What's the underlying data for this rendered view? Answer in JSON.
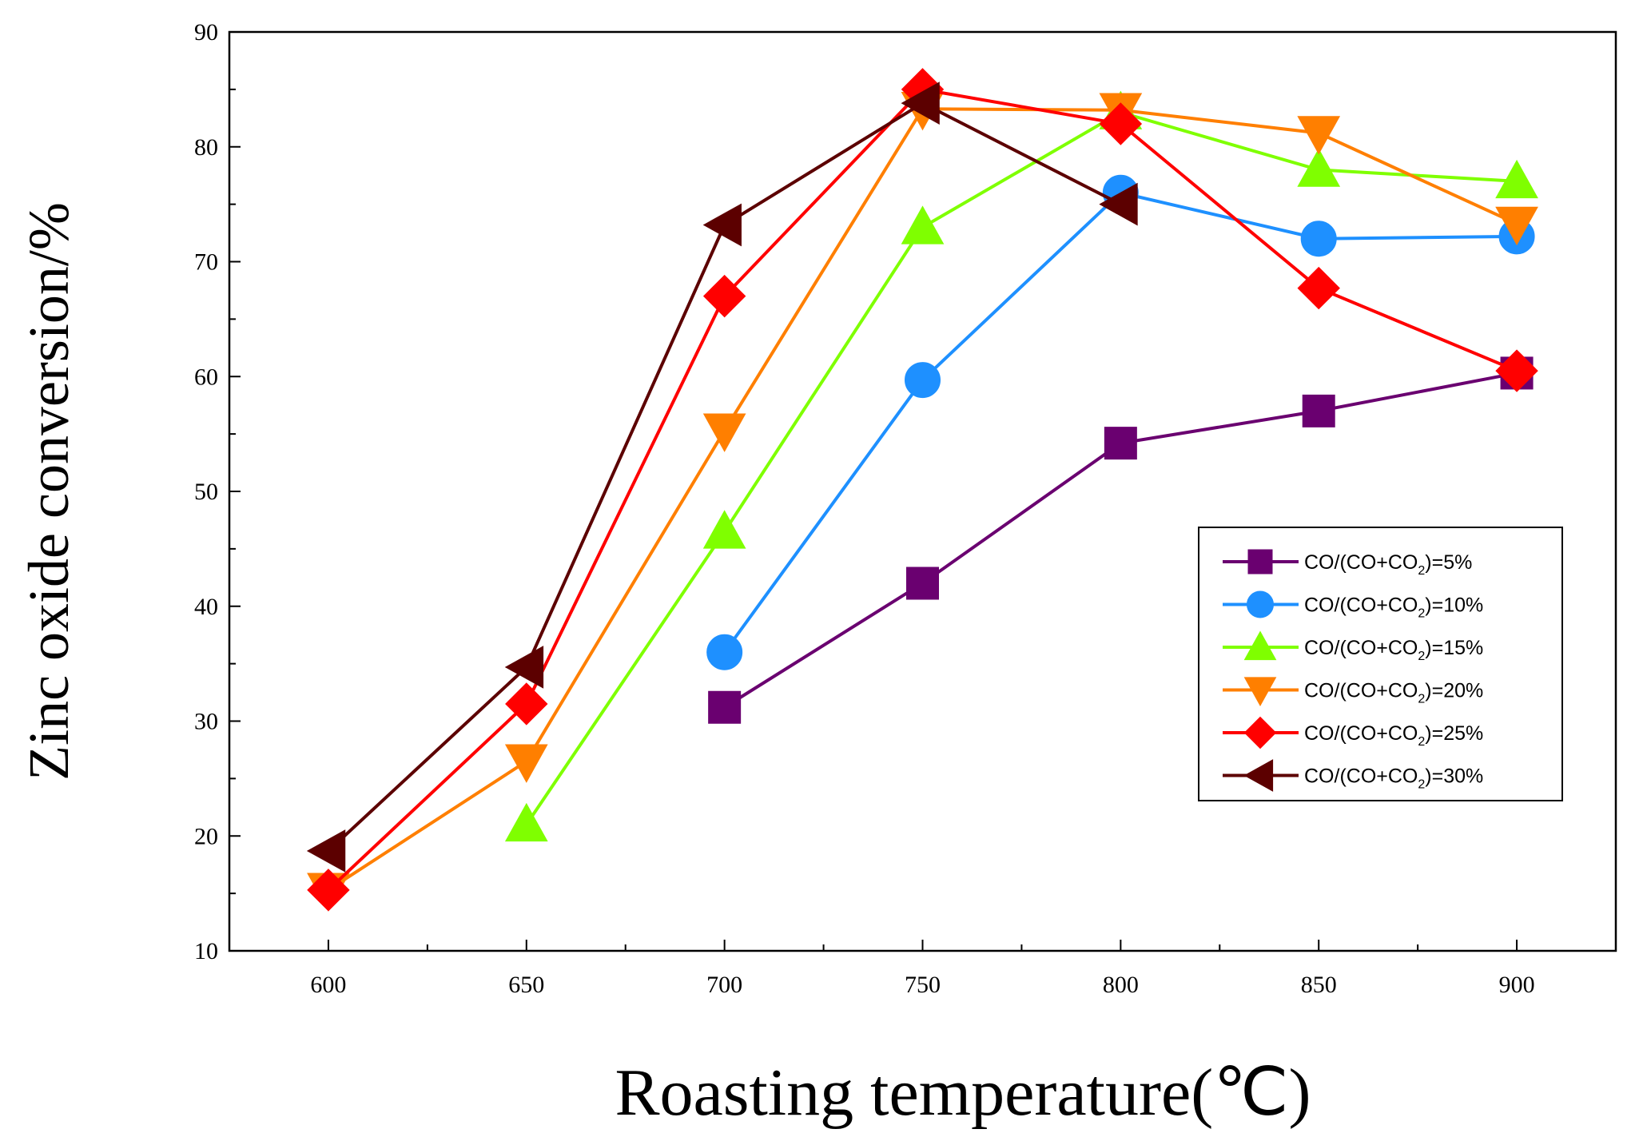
{
  "chart_data": {
    "type": "line",
    "title": "",
    "xlabel": "Roasting temperature(℃)",
    "ylabel": "Zinc oxide conversion/%",
    "xlim": [
      575,
      925
    ],
    "ylim": [
      10,
      90
    ],
    "xticks": [
      600,
      650,
      700,
      750,
      800,
      850,
      900
    ],
    "yticks": [
      10,
      20,
      30,
      40,
      50,
      60,
      70,
      80,
      90
    ],
    "legend_position": "right",
    "series": [
      {
        "name": "CO/(CO+CO2)=5%",
        "legend_prefix": "CO/(CO+CO",
        "legend_sub": "2",
        "legend_suffix": ")=5%",
        "color": "#6A0070",
        "marker": "square",
        "x": [
          700,
          750,
          800,
          850,
          900
        ],
        "y": [
          31.2,
          42,
          54.2,
          57,
          60.3
        ]
      },
      {
        "name": "CO/(CO+CO2)=10%",
        "legend_prefix": "CO/(CO+CO",
        "legend_sub": "2",
        "legend_suffix": ")=10%",
        "color": "#1E90FF",
        "marker": "circle",
        "x": [
          700,
          750,
          800,
          850,
          900
        ],
        "y": [
          36,
          59.7,
          76,
          72,
          72.2
        ]
      },
      {
        "name": "CO/(CO+CO2)=15%",
        "legend_prefix": "CO/(CO+CO",
        "legend_sub": "2",
        "legend_suffix": ")=15%",
        "color": "#7FFF00",
        "marker": "triangle-up",
        "x": [
          650,
          700,
          750,
          800,
          850,
          900
        ],
        "y": [
          21,
          46.5,
          73,
          83,
          78,
          77
        ]
      },
      {
        "name": "CO/(CO+CO2)=20%",
        "legend_prefix": "CO/(CO+CO",
        "legend_sub": "2",
        "legend_suffix": ")=20%",
        "color": "#FF7F00",
        "marker": "triangle-down",
        "x": [
          600,
          650,
          700,
          750,
          800,
          850,
          900
        ],
        "y": [
          15.3,
          26.5,
          55.3,
          83.3,
          83.2,
          81.2,
          73.3
        ]
      },
      {
        "name": "CO/(CO+CO2)=25%",
        "legend_prefix": "CO/(CO+CO",
        "legend_sub": "2",
        "legend_suffix": ")=25%",
        "color": "#FF0000",
        "marker": "diamond",
        "x": [
          600,
          650,
          700,
          750,
          800,
          850,
          900
        ],
        "y": [
          15.3,
          31.5,
          67,
          85,
          82,
          67.7,
          60.5
        ]
      },
      {
        "name": "CO/(CO+CO2)=30%",
        "legend_prefix": "CO/(CO+CO",
        "legend_sub": "2",
        "legend_suffix": ")=30%",
        "color": "#5C0000",
        "marker": "triangle-left",
        "x": [
          600,
          650,
          700,
          750,
          800
        ],
        "y": [
          18.7,
          34.7,
          73.2,
          83.8,
          75
        ]
      }
    ]
  }
}
